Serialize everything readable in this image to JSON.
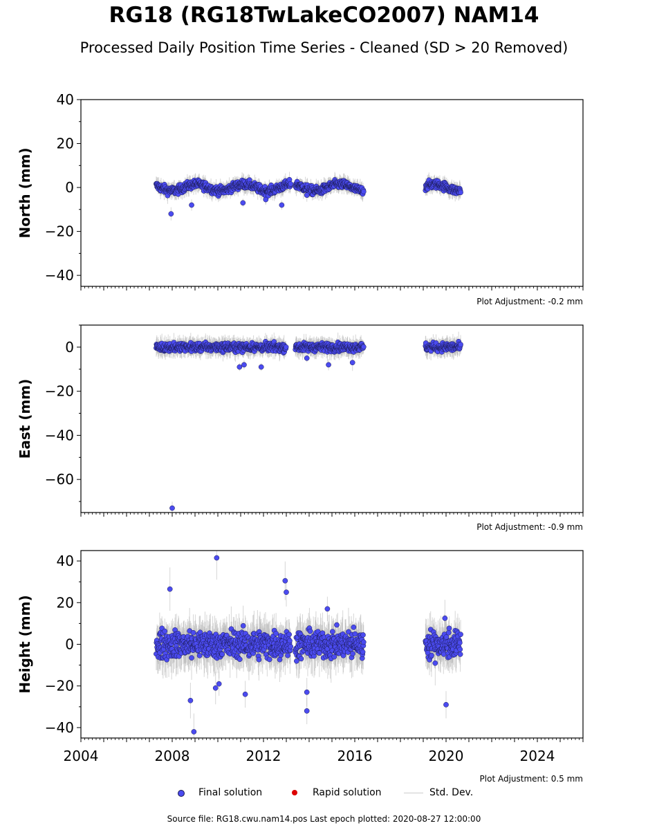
{
  "title": "RG18 (RG18TwLakeCO2007) NAM14",
  "subtitle": "Processed Daily Position Time Series - Cleaned (SD > 20 Removed)",
  "colors": {
    "final": "#4b4bf0",
    "final_edge": "#1a1a50",
    "rapid": "#dd0000",
    "stddev": "#b4b4b4"
  },
  "legend": {
    "final": "Final solution",
    "rapid": "Rapid solution",
    "stddev": "Std. Dev."
  },
  "footer": "Source file: RG18.cwu.nam14.pos  Last epoch plotted: 2020-08-27 12:00:00",
  "chart_data": [
    {
      "type": "scatter",
      "ylabel": "North (mm)",
      "xlim": [
        2004,
        2026
      ],
      "ylim": [
        -45,
        40
      ],
      "yticks": [
        "40",
        "20",
        "0",
        "−20",
        "−40"
      ],
      "ytick_values": [
        40,
        20,
        0,
        -20,
        -40
      ],
      "adjustment": "Plot Adjustment: -0.2 mm",
      "segments": [
        [
          2007.3,
          2013.2
        ],
        [
          2013.4,
          2016.4
        ],
        [
          2019.1,
          2020.65
        ]
      ],
      "spread": 2.0,
      "sd": 3.0,
      "outliers": [
        [
          2007.95,
          -12
        ],
        [
          2008.85,
          -8
        ],
        [
          2011.1,
          -7
        ],
        [
          2012.1,
          -5.5
        ],
        [
          2012.8,
          -8
        ],
        [
          2013.9,
          -3.5
        ]
      ],
      "series": [
        {
          "name": "Final solution",
          "values": []
        }
      ]
    },
    {
      "type": "scatter",
      "ylabel": "East (mm)",
      "xlim": [
        2004,
        2026
      ],
      "ylim": [
        -75,
        10
      ],
      "yticks": [
        "0",
        "−20",
        "−40",
        "−60"
      ],
      "ytick_values": [
        0,
        -20,
        -40,
        -60
      ],
      "adjustment": "Plot Adjustment: -0.9 mm",
      "segments": [
        [
          2007.3,
          2013.0
        ],
        [
          2013.4,
          2016.4
        ],
        [
          2019.1,
          2020.65
        ]
      ],
      "spread": 2.0,
      "sd": 3.5,
      "outliers": [
        [
          2008.0,
          -73
        ],
        [
          2010.95,
          -9
        ],
        [
          2011.15,
          -8
        ],
        [
          2011.9,
          -9
        ],
        [
          2013.9,
          -5
        ],
        [
          2014.85,
          -8
        ],
        [
          2015.9,
          -7
        ]
      ],
      "series": [
        {
          "name": "Final solution",
          "values": []
        }
      ]
    },
    {
      "type": "scatter",
      "ylabel": "Height (mm)",
      "xlim": [
        2004,
        2026
      ],
      "xticks": [
        "2004",
        "2008",
        "2012",
        "2016",
        "2020",
        "2024"
      ],
      "xtick_values": [
        2004,
        2008,
        2012,
        2016,
        2020,
        2024
      ],
      "ylim": [
        -45,
        45
      ],
      "yticks": [
        "40",
        "20",
        "0",
        "−20",
        "−40"
      ],
      "ytick_values": [
        40,
        20,
        0,
        -20,
        -40
      ],
      "adjustment": "Plot Adjustment: 0.5 mm",
      "segments": [
        [
          2007.3,
          2013.2
        ],
        [
          2013.4,
          2016.4
        ],
        [
          2019.1,
          2020.65
        ]
      ],
      "spread": 7.0,
      "sd": 9.0,
      "outliers": [
        [
          2007.9,
          26.5
        ],
        [
          2009.95,
          41.5
        ],
        [
          2012.95,
          30.5
        ],
        [
          2013.0,
          25
        ],
        [
          2008.8,
          -27
        ],
        [
          2008.95,
          -42
        ],
        [
          2009.9,
          -21
        ],
        [
          2010.05,
          -19
        ],
        [
          2011.2,
          -24
        ],
        [
          2013.9,
          -23
        ],
        [
          2013.9,
          -32
        ],
        [
          2020.0,
          -29
        ],
        [
          2019.95,
          12.5
        ],
        [
          2014.8,
          17
        ]
      ],
      "series": [
        {
          "name": "Final solution",
          "values": []
        }
      ]
    }
  ]
}
